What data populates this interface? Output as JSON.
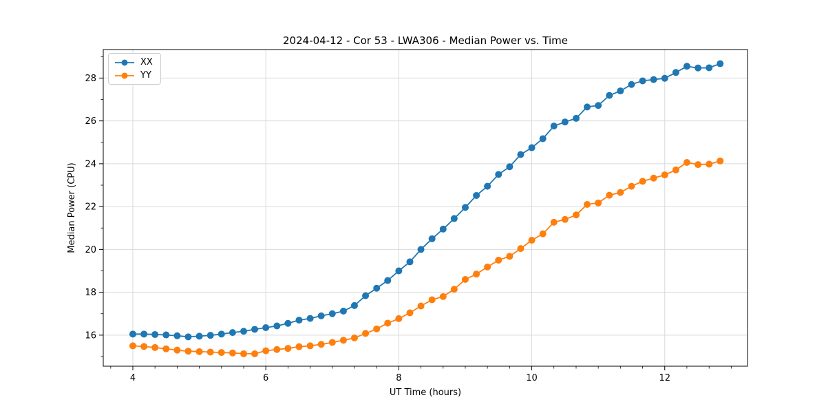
{
  "chart_data": {
    "type": "line",
    "title": "2024-04-12 - Cor 53 - LWA306 - Median Power vs. Time",
    "xlabel": "UT Time (hours)",
    "ylabel": "Median Power (CPU)",
    "xlim": [
      3.555,
      13.245
    ],
    "ylim": [
      14.55,
      29.33
    ],
    "x_major_ticks": [
      4,
      6,
      8,
      10,
      12
    ],
    "y_major_ticks": [
      16,
      18,
      20,
      22,
      24,
      26,
      28
    ],
    "x_minor_interval": 0.33333,
    "y_minor_interval": 1.0,
    "grid": "major-only",
    "grid_color": "#d9d9d9",
    "spine_color": "#000000",
    "legend_position": "upper-left",
    "x": [
      4.0,
      4.167,
      4.333,
      4.5,
      4.667,
      4.833,
      5.0,
      5.167,
      5.333,
      5.5,
      5.667,
      5.833,
      6.0,
      6.167,
      6.333,
      6.5,
      6.667,
      6.833,
      7.0,
      7.167,
      7.333,
      7.5,
      7.667,
      7.833,
      8.0,
      8.167,
      8.333,
      8.5,
      8.667,
      8.833,
      9.0,
      9.167,
      9.333,
      9.5,
      9.667,
      9.833,
      10.0,
      10.167,
      10.333,
      10.5,
      10.667,
      10.833,
      11.0,
      11.167,
      11.333,
      11.5,
      11.667,
      11.833,
      12.0,
      12.167,
      12.333,
      12.5,
      12.667,
      12.833
    ],
    "series": [
      {
        "name": "XX",
        "color": "#1f77b4",
        "values": [
          16.05,
          16.05,
          16.03,
          16.01,
          15.97,
          15.92,
          15.95,
          15.99,
          16.05,
          16.12,
          16.18,
          16.27,
          16.35,
          16.43,
          16.55,
          16.7,
          16.78,
          16.9,
          17.0,
          17.12,
          17.38,
          17.84,
          18.19,
          18.55,
          19.0,
          19.42,
          20.0,
          20.5,
          20.95,
          21.44,
          21.96,
          22.52,
          22.95,
          23.5,
          23.86,
          24.43,
          24.75,
          25.17,
          25.76,
          25.95,
          26.12,
          26.65,
          26.72,
          27.19,
          27.4,
          27.7,
          27.87,
          27.93,
          27.99,
          28.26,
          28.55,
          28.47,
          28.48,
          28.67
        ]
      },
      {
        "name": "YY",
        "color": "#ff7f0e",
        "values": [
          15.5,
          15.47,
          15.42,
          15.36,
          15.3,
          15.25,
          15.23,
          15.21,
          15.19,
          15.17,
          15.13,
          15.13,
          15.27,
          15.33,
          15.38,
          15.46,
          15.5,
          15.57,
          15.66,
          15.76,
          15.87,
          16.08,
          16.29,
          16.56,
          16.77,
          17.04,
          17.36,
          17.65,
          17.8,
          18.14,
          18.6,
          18.85,
          19.18,
          19.5,
          19.68,
          20.04,
          20.43,
          20.73,
          21.27,
          21.4,
          21.61,
          22.1,
          22.17,
          22.53,
          22.66,
          22.95,
          23.18,
          23.33,
          23.48,
          23.71,
          24.06,
          23.96,
          23.98,
          24.13
        ]
      }
    ]
  }
}
